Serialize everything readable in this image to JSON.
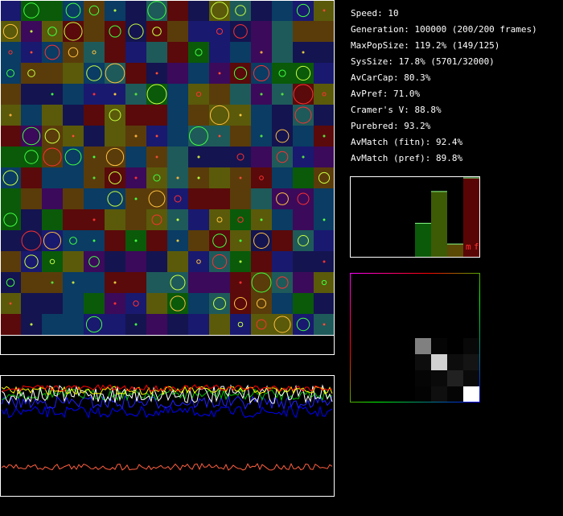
{
  "stats": [
    "Speed: 10",
    "Generation: 100000 (200/200 frames)",
    "MaxPopSize: 119.2% (149/125)",
    "SysSize: 17.8% (5701/32000)",
    "AvCarCap: 80.3%",
    "AvPref: 71.0%",
    "Cramer's V: 88.8%",
    "Purebred: 93.2%",
    "AvMatch (fitn): 92.4%",
    "AvMatch (pref): 89.8%"
  ],
  "histogram": {
    "legend": [
      "m",
      "f"
    ],
    "values": [
      0,
      0,
      0,
      0,
      0.42,
      0.82,
      0.16,
      0.99
    ],
    "colors": [
      "#0a5a0a",
      "#0a5a0a",
      "#0a5a0a",
      "#0a5a0a",
      "#0a5a0a",
      "#3d5a05",
      "#5a4a05",
      "#5a0505"
    ]
  },
  "heatmap": {
    "values": [
      [
        0,
        0,
        0,
        0,
        0,
        0,
        0,
        0
      ],
      [
        0,
        0,
        0,
        0,
        0,
        0,
        0,
        0
      ],
      [
        0,
        0,
        0,
        0,
        0,
        0,
        0,
        0
      ],
      [
        0,
        0,
        0,
        0,
        0,
        0,
        0,
        0
      ],
      [
        0,
        0,
        0,
        0,
        0.5,
        0.02,
        0,
        0.03
      ],
      [
        0,
        0,
        0,
        0,
        0.05,
        0.82,
        0.05,
        0.08
      ],
      [
        0,
        0,
        0,
        0,
        0.02,
        0.04,
        0.13,
        0.04
      ],
      [
        0,
        0,
        0,
        0,
        0.01,
        0.06,
        0.02,
        1
      ]
    ]
  }
}
